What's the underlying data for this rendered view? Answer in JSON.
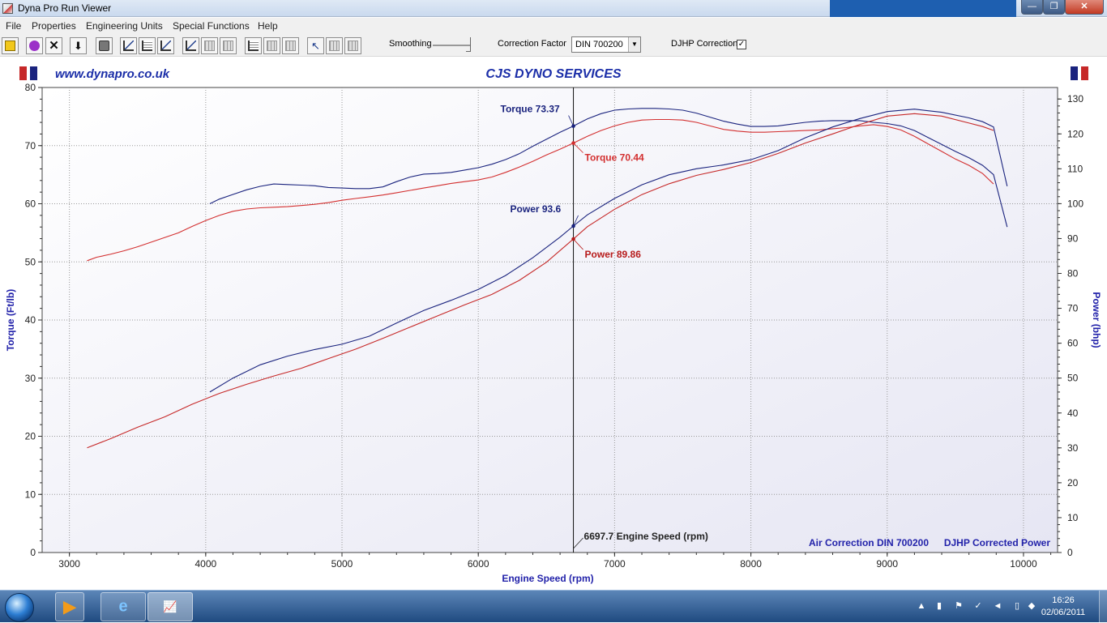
{
  "window": {
    "title": "Dyna Pro Run Viewer"
  },
  "menu": [
    "File",
    "Properties",
    "Engineering Units",
    "Special Functions",
    "Help"
  ],
  "toolbar": {
    "smoothing_label": "Smoothing",
    "correction_factor_label": "Correction Factor",
    "correction_factor_value": "DIN 700200",
    "djhp_label": "DJHP Correction",
    "djhp_checked": "✓"
  },
  "colors": {
    "torque_blue": "#1a237e",
    "torque_red": "#d32f2f",
    "power_blue": "#1a237e",
    "power_red": "#c62828",
    "axis_text": "#2222aa",
    "header_text": "#1b2ea8"
  },
  "chart_data": {
    "type": "line",
    "header_left": "www.dynapro.co.uk",
    "title": "CJS DYNO SERVICES",
    "xlabel": "Engine Speed (rpm)",
    "ylabel_left": "Torque (Ft/lb)",
    "ylabel_right": "Power (bhp)",
    "xlim": [
      2800,
      10250
    ],
    "ylim_left": [
      0,
      80
    ],
    "ylim_right": [
      0,
      133.3
    ],
    "x_ticks": [
      "3000",
      "4000",
      "5000",
      "6000",
      "7000",
      "8000",
      "9000",
      "10000"
    ],
    "y_left_ticks": [
      "0",
      "10",
      "20",
      "30",
      "40",
      "50",
      "60",
      "70",
      "80"
    ],
    "y_right_ticks": [
      "0",
      "10",
      "20",
      "30",
      "40",
      "50",
      "60",
      "70",
      "80",
      "90",
      "100",
      "110",
      "120",
      "130"
    ],
    "grid": true,
    "footer_left": "Air Correction DIN 700200",
    "footer_right": "DJHP Corrected Power",
    "cursor": {
      "rpm": 6697.7,
      "label": "6697.7 Engine Speed (rpm)"
    },
    "cursor_labels": [
      {
        "text": "Torque 73.37",
        "series": 0
      },
      {
        "text": "Torque 70.44",
        "series": 1
      },
      {
        "text": "Power 93.6",
        "series": 2
      },
      {
        "text": "Power 89.86",
        "series": 3
      }
    ],
    "series": [
      {
        "axis": "left",
        "color": "#1a237e",
        "x": [
          4030,
          4100,
          4200,
          4300,
          4400,
          4500,
          4600,
          4700,
          4800,
          4900,
          5000,
          5100,
          5200,
          5300,
          5400,
          5500,
          5600,
          5700,
          5800,
          5900,
          6000,
          6100,
          6200,
          6300,
          6400,
          6500,
          6600,
          6697.7,
          6800,
          6900,
          7000,
          7100,
          7200,
          7300,
          7400,
          7500,
          7600,
          7700,
          7800,
          7900,
          8000,
          8100,
          8200,
          8300,
          8400,
          8500,
          8600,
          8700,
          8800,
          8900,
          9000,
          9100,
          9200,
          9300,
          9400,
          9500,
          9600,
          9700,
          9780,
          9880
        ],
        "y": [
          60.0,
          60.8,
          61.6,
          62.4,
          63.0,
          63.4,
          63.3,
          63.2,
          63.1,
          62.8,
          62.7,
          62.6,
          62.6,
          62.9,
          63.8,
          64.6,
          65.1,
          65.2,
          65.4,
          65.8,
          66.2,
          66.8,
          67.6,
          68.6,
          69.9,
          71.1,
          72.3,
          73.37,
          74.6,
          75.5,
          76.1,
          76.3,
          76.4,
          76.4,
          76.3,
          76.1,
          75.6,
          74.9,
          74.2,
          73.7,
          73.3,
          73.3,
          73.4,
          73.7,
          74.0,
          74.2,
          74.3,
          74.3,
          74.3,
          74.0,
          73.8,
          73.4,
          72.6,
          71.4,
          70.2,
          69.0,
          67.9,
          66.6,
          65.0,
          56.0
        ]
      },
      {
        "axis": "left",
        "color": "#d32f2f",
        "x": [
          3130,
          3200,
          3300,
          3400,
          3500,
          3600,
          3700,
          3800,
          3900,
          4000,
          4100,
          4200,
          4300,
          4400,
          4500,
          4600,
          4700,
          4800,
          4900,
          5000,
          5100,
          5200,
          5300,
          5400,
          5500,
          5600,
          5700,
          5800,
          5900,
          6000,
          6100,
          6200,
          6300,
          6400,
          6500,
          6600,
          6697.7,
          6800,
          6900,
          7000,
          7100,
          7200,
          7300,
          7400,
          7500,
          7600,
          7700,
          7800,
          7900,
          8000,
          8100,
          8200,
          8300,
          8400,
          8500,
          8600,
          8700,
          8800,
          8900,
          9000,
          9100,
          9200,
          9300,
          9400,
          9500,
          9600,
          9700,
          9780
        ],
        "y": [
          50.2,
          50.8,
          51.3,
          51.9,
          52.6,
          53.4,
          54.2,
          55.0,
          56.1,
          57.1,
          58.0,
          58.7,
          59.1,
          59.3,
          59.4,
          59.5,
          59.7,
          59.9,
          60.2,
          60.6,
          60.9,
          61.2,
          61.5,
          61.9,
          62.3,
          62.7,
          63.1,
          63.5,
          63.8,
          64.1,
          64.6,
          65.4,
          66.3,
          67.3,
          68.4,
          69.4,
          70.44,
          71.6,
          72.6,
          73.4,
          74.0,
          74.4,
          74.5,
          74.5,
          74.4,
          74.0,
          73.4,
          72.8,
          72.5,
          72.3,
          72.3,
          72.4,
          72.5,
          72.6,
          72.7,
          72.9,
          73.1,
          73.4,
          73.6,
          73.3,
          72.7,
          71.6,
          70.3,
          69.0,
          67.7,
          66.6,
          65.2,
          63.4
        ]
      },
      {
        "axis": "right",
        "color": "#1a237e",
        "x": [
          4030,
          4200,
          4400,
          4600,
          4800,
          5000,
          5200,
          5400,
          5600,
          5800,
          6000,
          6200,
          6400,
          6600,
          6697.7,
          6800,
          7000,
          7200,
          7400,
          7600,
          7800,
          8000,
          8200,
          8400,
          8600,
          8800,
          9000,
          9200,
          9400,
          9600,
          9700,
          9780,
          9880
        ],
        "y": [
          46.0,
          50.0,
          53.8,
          56.3,
          58.2,
          59.7,
          62.0,
          65.8,
          69.4,
          72.3,
          75.4,
          79.4,
          84.5,
          90.4,
          93.6,
          96.8,
          101.5,
          105.4,
          108.3,
          110.0,
          111.1,
          112.6,
          115.2,
          118.9,
          122.0,
          124.4,
          126.4,
          127.1,
          126.2,
          124.6,
          123.5,
          122.0,
          105.0
        ]
      },
      {
        "axis": "right",
        "color": "#c62828",
        "x": [
          3130,
          3300,
          3500,
          3700,
          3900,
          4100,
          4300,
          4500,
          4700,
          4900,
          5100,
          5300,
          5500,
          5700,
          5900,
          6100,
          6300,
          6500,
          6697.7,
          6800,
          7000,
          7200,
          7400,
          7600,
          7800,
          8000,
          8200,
          8400,
          8600,
          8800,
          9000,
          9200,
          9400,
          9600,
          9700,
          9780
        ],
        "y": [
          30.0,
          32.6,
          35.9,
          38.9,
          42.5,
          45.6,
          48.2,
          50.6,
          52.8,
          55.6,
          58.3,
          61.4,
          64.6,
          67.8,
          71.0,
          74.0,
          78.0,
          83.2,
          89.86,
          93.4,
          98.4,
          102.6,
          105.7,
          108.1,
          109.8,
          111.8,
          114.4,
          117.4,
          120.0,
          122.7,
          125.1,
          125.8,
          125.1,
          123.1,
          122.1,
          121.0
        ]
      }
    ]
  }
}
